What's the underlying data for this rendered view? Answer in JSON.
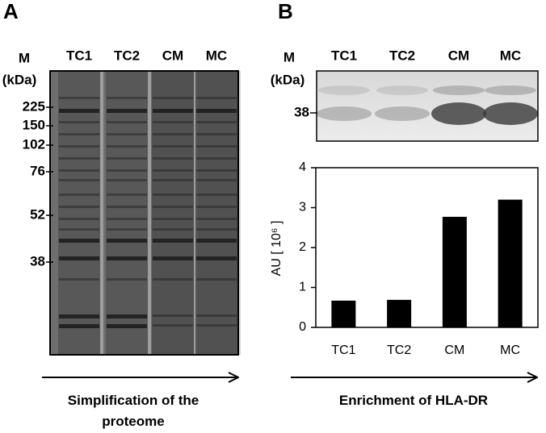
{
  "panel_a": {
    "label": "A",
    "marker_header": "M",
    "marker_unit": "(kDa)",
    "lanes": [
      "TC1",
      "TC2",
      "CM",
      "MC"
    ],
    "markers": [
      "225",
      "150",
      "102",
      "76",
      "52",
      "38"
    ],
    "caption": "Simplification of the proteome"
  },
  "panel_b": {
    "label": "B",
    "marker_header": "M",
    "marker_unit": "(kDa)",
    "lanes": [
      "TC1",
      "TC2",
      "CM",
      "MC"
    ],
    "markers": [
      "38"
    ],
    "caption": "Enrichment of HLA-DR"
  },
  "chart_data": {
    "type": "bar",
    "y_label": "AU [ 10⁶ ]",
    "categories": [
      "TC1",
      "TC2",
      "CM",
      "MC"
    ],
    "values": [
      0.67,
      0.69,
      2.77,
      3.2
    ],
    "color": "#000000",
    "ylim": [
      0,
      4
    ],
    "yticks": [
      0,
      1,
      2,
      3,
      4
    ]
  }
}
